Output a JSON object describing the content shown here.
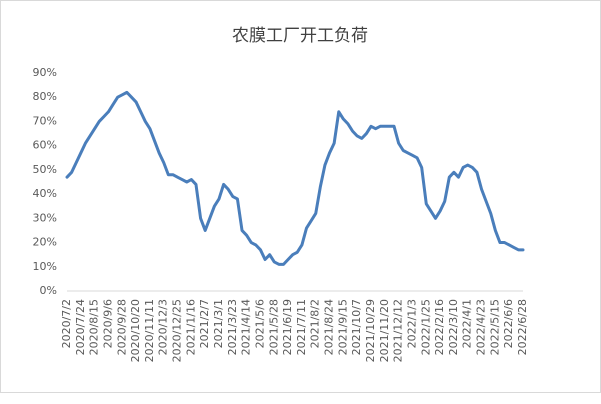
{
  "chart_data": {
    "type": "line",
    "title": "农膜工厂开工负荷",
    "categories": [
      "2020/7/2",
      null,
      null,
      "2020/7/24",
      null,
      null,
      "2020/8/15",
      null,
      null,
      "2020/9/6",
      null,
      null,
      "2020/9/28",
      null,
      null,
      "2020/10/20",
      null,
      null,
      "2020/11/11",
      null,
      null,
      "2020/12/3",
      null,
      null,
      "2020/12/25",
      null,
      null,
      "2021/1/16",
      null,
      null,
      "2021/2/7",
      null,
      null,
      "2021/3/1",
      null,
      null,
      "2021/3/23",
      null,
      null,
      "2021/4/14",
      null,
      null,
      "2021/5/6",
      null,
      null,
      "2021/5/28",
      null,
      null,
      "2021/6/19",
      null,
      null,
      "2021/7/11",
      null,
      null,
      "2021/8/2",
      null,
      null,
      "2021/8/24",
      null,
      null,
      "2021/9/15",
      null,
      null,
      "2021/10/7",
      null,
      null,
      "2021/10/29",
      null,
      null,
      "2021/11/20",
      null,
      null,
      "2021/12/12",
      null,
      null,
      "2022/1/3",
      null,
      null,
      "2022/1/25",
      null,
      null,
      "2022/2/16",
      null,
      null,
      "2022/3/10",
      null,
      null,
      "2022/4/1",
      null,
      null,
      "2022/4/23",
      null,
      null,
      "2022/5/15",
      null,
      null,
      "2022/6/6",
      null,
      null,
      "2022/6/28"
    ],
    "values": [
      47,
      49,
      53,
      57,
      61,
      64,
      67,
      70,
      72,
      74,
      77,
      80,
      81,
      82,
      80,
      78,
      74,
      70,
      67,
      62,
      57,
      53,
      48,
      48,
      47,
      46,
      45,
      46,
      44,
      30,
      25,
      30,
      35,
      38,
      44,
      42,
      39,
      38,
      25,
      23,
      20,
      19,
      17,
      13,
      15,
      12,
      11,
      11,
      13,
      15,
      16,
      19,
      26,
      29,
      32,
      43,
      52,
      57,
      61,
      74,
      71,
      69,
      66,
      64,
      63,
      65,
      68,
      67,
      68,
      68,
      68,
      68,
      61,
      58,
      57,
      56,
      55,
      51,
      36,
      33,
      30,
      33,
      37,
      47,
      49,
      47,
      51,
      52,
      51,
      49,
      42,
      37,
      32,
      25,
      20,
      20,
      19,
      18,
      17,
      17
    ],
    "color": "#4a7ebb",
    "ylim": [
      0,
      90
    ],
    "yticks": [
      {
        "value": 0,
        "label": "0%"
      },
      {
        "value": 10,
        "label": "10%"
      },
      {
        "value": 20,
        "label": "20%"
      },
      {
        "value": 30,
        "label": "30%"
      },
      {
        "value": 40,
        "label": "40%"
      },
      {
        "value": 50,
        "label": "50%"
      },
      {
        "value": 60,
        "label": "60%"
      },
      {
        "value": 70,
        "label": "70%"
      },
      {
        "value": 80,
        "label": "80%"
      },
      {
        "value": 90,
        "label": "90%"
      }
    ],
    "grid": false
  }
}
